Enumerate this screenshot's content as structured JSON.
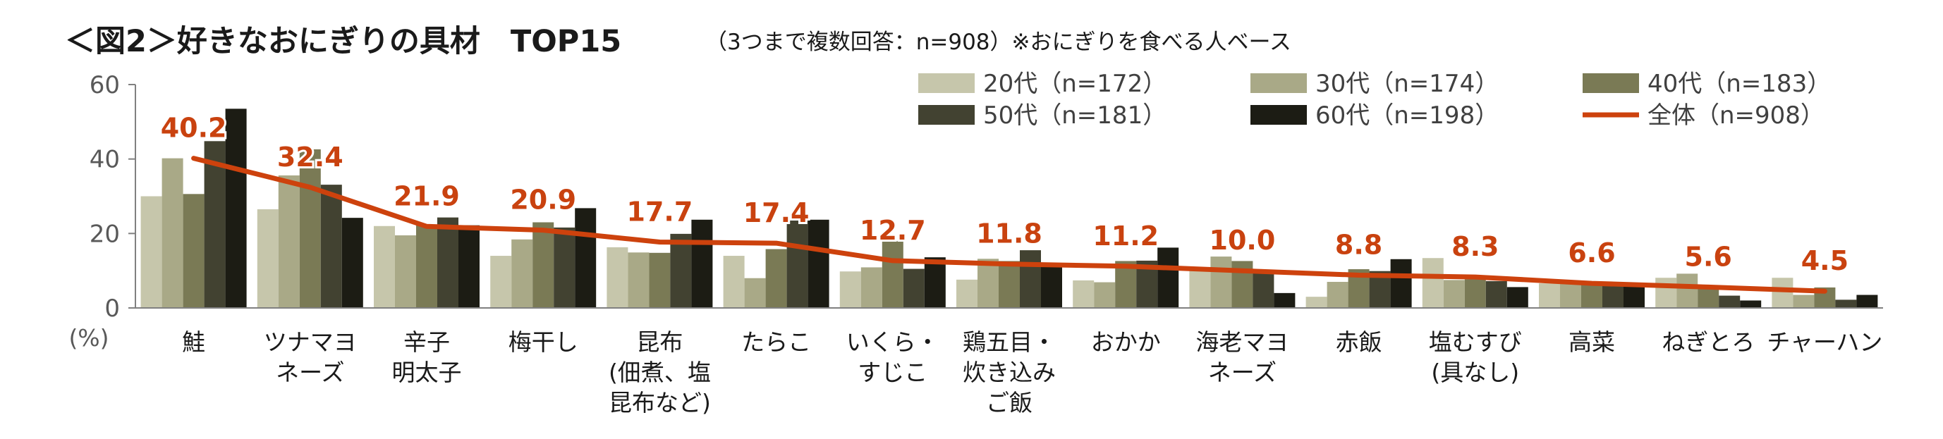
{
  "title": {
    "main": "＜図2＞好きなおにぎりの具材　TOP15",
    "sub": "（3つまで複数回答：n=908）※おにぎりを食べる人ベース"
  },
  "chart_data": {
    "type": "bar",
    "unit_label": "(%)",
    "ylim": [
      0,
      60
    ],
    "yticks": [
      0,
      20,
      40,
      60
    ],
    "grid": false,
    "legend_position": "top-right",
    "categories": [
      [
        "鮭"
      ],
      [
        "ツナマヨ",
        "ネーズ"
      ],
      [
        "辛子",
        "明太子"
      ],
      [
        "梅干し"
      ],
      [
        "昆布",
        "(佃煮、塩",
        "昆布など)"
      ],
      [
        "たらこ"
      ],
      [
        "いくら・",
        "すじこ"
      ],
      [
        "鶏五目・",
        "炊き込み",
        "ご飯"
      ],
      [
        "おかか"
      ],
      [
        "海老マヨ",
        "ネーズ"
      ],
      [
        "赤飯"
      ],
      [
        "塩むすび",
        "(具なし)"
      ],
      [
        "高菜"
      ],
      [
        "ねぎとろ"
      ],
      [
        "チャーハン"
      ]
    ],
    "series": [
      {
        "name": "20代（n=172）",
        "color": "#c6c6ab",
        "values": [
          30,
          26.5,
          22,
          14,
          16.3,
          14,
          9.8,
          7.6,
          7.4,
          10.5,
          3,
          13.4,
          6.6,
          8.1,
          8.1
        ]
      },
      {
        "name": "30代（n=174）",
        "color": "#a9a987",
        "values": [
          40.2,
          35.6,
          19.5,
          18.4,
          14.9,
          8,
          10.9,
          13.2,
          6.9,
          13.8,
          7,
          7.5,
          6.9,
          9.2,
          3.5
        ]
      },
      {
        "name": "40代（n=183）",
        "color": "#7a7a55",
        "values": [
          30.6,
          42.6,
          22.4,
          23,
          14.8,
          15.8,
          18,
          12.6,
          12.6,
          12.6,
          10.4,
          7.7,
          6.6,
          5.5,
          5.5
        ]
      },
      {
        "name": "50代（n=181）",
        "color": "#424231",
        "values": [
          44.8,
          33.1,
          24.3,
          21.6,
          19.9,
          24.3,
          10.5,
          15.5,
          12.7,
          9.4,
          9.9,
          7.2,
          6.1,
          3.3,
          2.2
        ]
      },
      {
        "name": "60代（n=198）",
        "color": "#1c1c14",
        "values": [
          53.5,
          24.2,
          22.2,
          26.8,
          23.7,
          23.7,
          13.6,
          11.6,
          16.2,
          4,
          13.1,
          5.6,
          6.6,
          2,
          3.5
        ]
      }
    ],
    "total": {
      "name": "全体（n=908）",
      "color": "#cd420d",
      "values": [
        40.2,
        32.4,
        21.9,
        20.9,
        17.7,
        17.4,
        12.7,
        11.8,
        11.2,
        10.0,
        8.8,
        8.3,
        6.6,
        5.6,
        4.5
      ]
    },
    "total_labels": [
      "40.2",
      "32.4",
      "21.9",
      "20.9",
      "17.7",
      "17.4",
      "12.7",
      "11.8",
      "11.2",
      "10.0",
      "8.8",
      "8.3",
      "6.6",
      "5.6",
      "4.5"
    ]
  }
}
